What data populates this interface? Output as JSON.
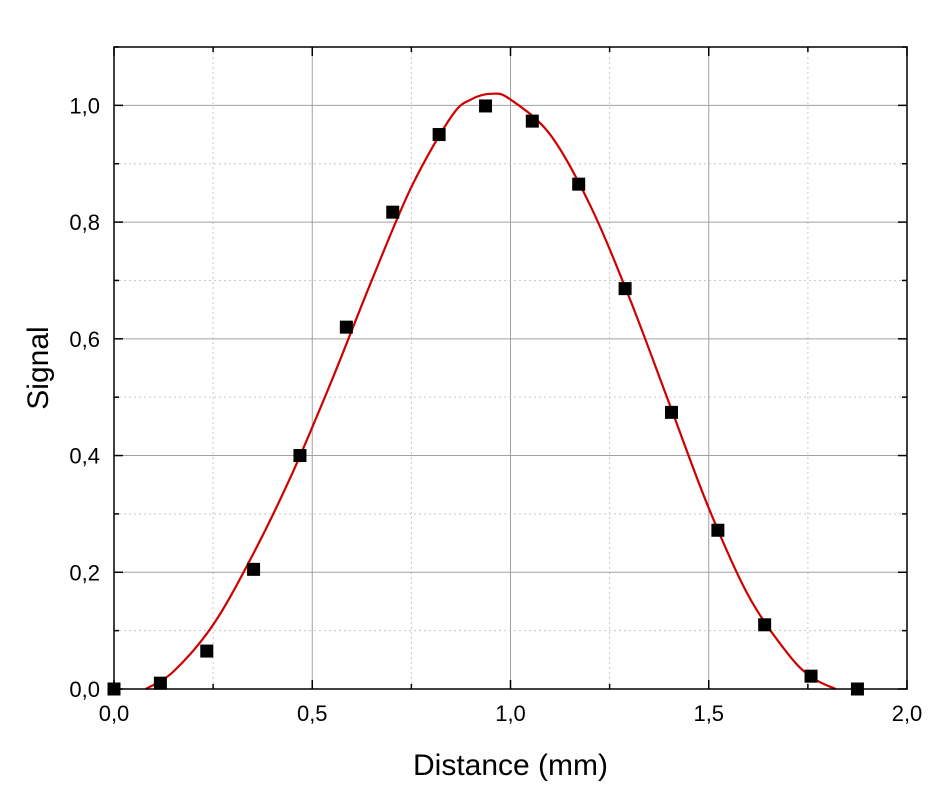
{
  "chart_data": {
    "type": "scatter",
    "xlabel": "Distance (mm)",
    "ylabel": "Signal",
    "xlim": [
      0.0,
      2.0
    ],
    "ylim": [
      0.0,
      1.1
    ],
    "x_ticks": [
      "0,0",
      "0,5",
      "1,0",
      "1,5",
      "2,0"
    ],
    "y_ticks": [
      "0,0",
      "0,2",
      "0,4",
      "0,6",
      "0,8",
      "1,0"
    ],
    "grid": true,
    "series": [
      {
        "kind": "points",
        "marker": "square",
        "color": "#000000",
        "x": [
          0.0,
          0.117,
          0.234,
          0.352,
          0.469,
          0.586,
          0.703,
          0.82,
          0.937,
          1.055,
          1.172,
          1.289,
          1.406,
          1.523,
          1.641,
          1.758,
          1.875
        ],
        "y": [
          0.0,
          0.01,
          0.065,
          0.205,
          0.4,
          0.62,
          0.817,
          0.95,
          0.999,
          0.973,
          0.865,
          0.686,
          0.474,
          0.272,
          0.11,
          0.022,
          0.0
        ]
      },
      {
        "kind": "fit-line",
        "color": "#d00000",
        "x": [
          0.08,
          0.15,
          0.25,
          0.35,
          0.45,
          0.55,
          0.65,
          0.75,
          0.85,
          0.9,
          0.955,
          1.0,
          1.1,
          1.2,
          1.3,
          1.4,
          1.5,
          1.6,
          1.7,
          1.76,
          1.82
        ],
        "y": [
          0.0,
          0.03,
          0.11,
          0.23,
          0.37,
          0.53,
          0.7,
          0.86,
          0.98,
          1.01,
          1.02,
          1.01,
          0.95,
          0.83,
          0.67,
          0.49,
          0.31,
          0.16,
          0.06,
          0.02,
          0.0
        ]
      }
    ]
  }
}
